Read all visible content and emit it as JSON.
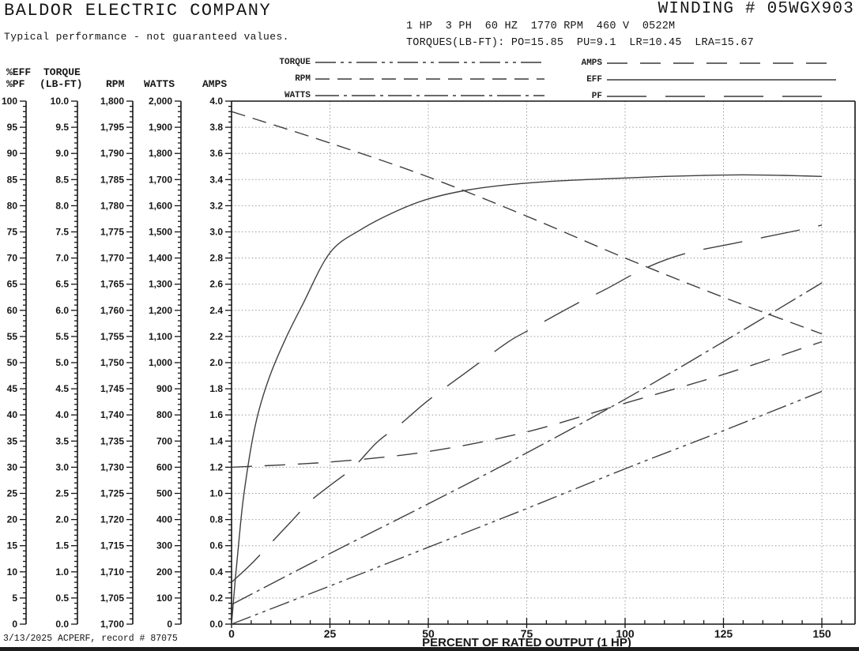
{
  "header": {
    "company": "BALDOR ELECTRIC COMPANY",
    "winding": "WINDING # 05WGX903",
    "subtitle": "Typical performance - not guaranteed values.",
    "spec_line1": "1 HP  3 PH  60 HZ  1770 RPM  460 V  0522M",
    "spec_line2": "TORQUES(LB-FT): PO=15.85  PU=9.1  LR=10.45  LRA=15.67"
  },
  "legend": {
    "left": [
      {
        "label": "TORQUE",
        "pattern": "dash-dot-dot"
      },
      {
        "label": "RPM",
        "pattern": "dash"
      },
      {
        "label": "WATTS",
        "pattern": "dash-dot"
      }
    ],
    "right": [
      {
        "label": "AMPS",
        "pattern": "long-dash"
      },
      {
        "label": "EFF",
        "pattern": "solid"
      },
      {
        "label": "PF",
        "pattern": "very-long-dash"
      }
    ]
  },
  "scale_headers": {
    "eff_pf_line1": "%EFF",
    "eff_pf_line2": "%PF",
    "torque_line1": "TORQUE",
    "torque_line2": "(LB-FT)",
    "rpm": "RPM",
    "watts": "WATTS",
    "amps": "AMPS"
  },
  "footer": {
    "record_line": "3/13/2025 ACPERF, record # 87075"
  },
  "colors": {
    "curve": "#3f3f3f",
    "frame": "#141414",
    "grid": "#9b9b9b",
    "text": "#161616"
  },
  "chart_data": {
    "type": "line",
    "xlabel": "PERCENT OF RATED OUTPUT (1 HP)",
    "x_range": [
      0,
      150
    ],
    "x_ticks": [
      0,
      25,
      50,
      75,
      100,
      125,
      150
    ],
    "x_minor_step": 5,
    "grid": "dotted",
    "axes": [
      {
        "id": "eff_pf",
        "label": "%EFF / %PF",
        "min": 0,
        "max": 100,
        "major_step": 5,
        "minors_per_major": 5,
        "format": "int"
      },
      {
        "id": "torque",
        "label": "TORQUE (LB-FT)",
        "min": 0,
        "max": 10,
        "major_step": 0.5,
        "minors_per_major": 5,
        "format": "fixed1"
      },
      {
        "id": "rpm",
        "label": "RPM",
        "min": 1700,
        "max": 1800,
        "major_step": 5,
        "minors_per_major": 5,
        "format": "comma"
      },
      {
        "id": "watts",
        "label": "WATTS",
        "min": 0,
        "max": 2000,
        "major_step": 100,
        "minors_per_major": 5,
        "format": "comma"
      },
      {
        "id": "amps",
        "label": "AMPS",
        "min": 0,
        "max": 4,
        "major_step": 0.2,
        "minors_per_major": 5,
        "format": "fixed1"
      }
    ],
    "series": [
      {
        "name": "TORQUE",
        "axis": "torque",
        "dash": "dash-dot-dot",
        "x": [
          0,
          25,
          50,
          75,
          100,
          125,
          150
        ],
        "values": [
          0,
          0.73,
          1.47,
          2.21,
          2.97,
          3.7,
          4.45
        ]
      },
      {
        "name": "RPM",
        "axis": "rpm",
        "dash": "dash",
        "x": [
          0,
          25,
          50,
          75,
          100,
          125,
          150
        ],
        "values": [
          1798,
          1792,
          1785.5,
          1778,
          1770,
          1762.5,
          1755.5
        ]
      },
      {
        "name": "WATTS",
        "axis": "watts",
        "dash": "dash-dot",
        "x": [
          0,
          25,
          50,
          75,
          100,
          125,
          150
        ],
        "values": [
          75,
          270,
          460,
          655,
          860,
          1080,
          1305
        ]
      },
      {
        "name": "AMPS",
        "axis": "amps",
        "dash": "long-dash",
        "x": [
          0,
          25,
          50,
          75,
          100,
          125,
          150
        ],
        "values": [
          1.2,
          1.24,
          1.32,
          1.47,
          1.69,
          1.91,
          2.16
        ]
      },
      {
        "name": "EFF",
        "axis": "eff_pf",
        "dash": "solid",
        "x": [
          0,
          1,
          2,
          3,
          5,
          7,
          10,
          14,
          18,
          25,
          33,
          42,
          50,
          60,
          70,
          80,
          90,
          100,
          110,
          120,
          130,
          140,
          150
        ],
        "values": [
          0,
          9,
          17,
          24,
          34,
          41,
          48,
          55,
          61,
          71,
          75.5,
          79,
          81.3,
          83,
          84,
          84.6,
          85,
          85.3,
          85.6,
          85.8,
          85.9,
          85.8,
          85.6
        ]
      },
      {
        "name": "PF",
        "axis": "eff_pf",
        "dash": "very-long-dash",
        "x": [
          0,
          5,
          10,
          15,
          20,
          25,
          31,
          37,
          43,
          50,
          59,
          70,
          75,
          87,
          95,
          105,
          115,
          129,
          144,
          150
        ],
        "values": [
          8,
          11.5,
          15.5,
          19.5,
          23.5,
          26.5,
          30,
          34.8,
          38.3,
          42.8,
          47.8,
          53.8,
          56,
          61,
          64,
          68,
          70.8,
          73,
          75.3,
          76.3
        ]
      }
    ]
  }
}
